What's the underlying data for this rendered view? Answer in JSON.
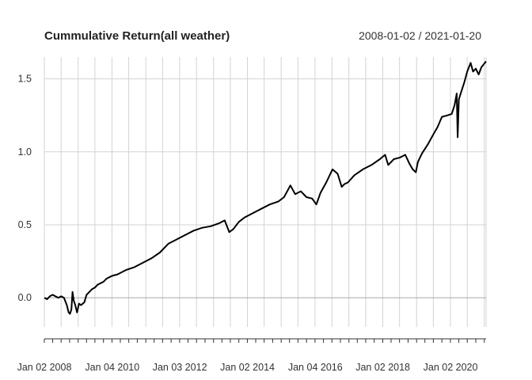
{
  "chart_data": {
    "type": "line",
    "title": "Cummulative Return(all weather)",
    "date_range": "2008-01-02 / 2021-01-20",
    "xlabel": "",
    "ylabel": "",
    "x_range": [
      "2008-01-02",
      "2021-01-20"
    ],
    "ylim": [
      -0.2,
      1.65
    ],
    "y_ticks": [
      0.0,
      0.5,
      1.0,
      1.5
    ],
    "y_tick_labels": [
      "0.0",
      "0.5",
      "1.0",
      "1.5"
    ],
    "x_tick_labels": [
      {
        "date": "2008-01-02",
        "label": "Jan 02 2008"
      },
      {
        "date": "2010-01-04",
        "label": "Jan 04 2010"
      },
      {
        "date": "2012-01-03",
        "label": "Jan 03 2012"
      },
      {
        "date": "2014-01-02",
        "label": "Jan 02 2014"
      },
      {
        "date": "2016-01-04",
        "label": "Jan 04 2016"
      },
      {
        "date": "2018-01-02",
        "label": "Jan 02 2018"
      },
      {
        "date": "2020-01-02",
        "label": "Jan 02 2020"
      }
    ],
    "grid": true,
    "line_color": "#000000",
    "grid_color": "#d3d3d3",
    "series": [
      {
        "x": [
          "2008-01-02",
          "2008-02-01",
          "2008-03-01",
          "2008-04-01",
          "2008-05-01",
          "2008-06-01",
          "2008-07-01",
          "2008-08-01",
          "2008-09-01",
          "2008-09-20",
          "2008-10-05",
          "2008-10-20",
          "2008-11-01",
          "2008-11-15",
          "2008-12-01",
          "2008-12-20",
          "2009-01-10",
          "2009-02-01",
          "2009-02-20",
          "2009-03-09",
          "2009-04-01",
          "2009-05-01",
          "2009-06-01",
          "2009-07-01",
          "2009-08-01",
          "2009-09-01",
          "2009-10-01",
          "2009-11-01",
          "2009-12-01",
          "2010-01-01",
          "2010-03-01",
          "2010-06-01",
          "2010-09-01",
          "2010-12-01",
          "2011-03-01",
          "2011-06-01",
          "2011-09-01",
          "2011-12-01",
          "2012-03-01",
          "2012-06-01",
          "2012-09-01",
          "2012-12-01",
          "2013-03-01",
          "2013-05-01",
          "2013-06-20",
          "2013-08-01",
          "2013-10-01",
          "2013-12-01",
          "2014-03-01",
          "2014-06-01",
          "2014-09-01",
          "2014-12-01",
          "2015-02-01",
          "2015-04-10",
          "2015-06-01",
          "2015-08-01",
          "2015-10-01",
          "2015-12-01",
          "2016-01-15",
          "2016-03-01",
          "2016-05-01",
          "2016-07-08",
          "2016-09-01",
          "2016-10-15",
          "2016-11-15",
          "2016-12-20",
          "2017-03-01",
          "2017-06-01",
          "2017-09-01",
          "2017-12-01",
          "2018-01-26",
          "2018-03-01",
          "2018-05-01",
          "2018-07-01",
          "2018-09-01",
          "2018-10-15",
          "2018-11-20",
          "2018-12-24",
          "2019-01-15",
          "2019-03-01",
          "2019-05-01",
          "2019-07-01",
          "2019-08-15",
          "2019-10-01",
          "2019-12-01",
          "2020-01-15",
          "2020-02-15",
          "2020-03-09",
          "2020-03-19",
          "2020-04-01",
          "2020-05-01",
          "2020-06-01",
          "2020-07-01",
          "2020-08-06",
          "2020-09-01",
          "2020-10-01",
          "2020-11-01",
          "2020-12-01",
          "2021-01-20"
        ],
        "y": [
          0.0,
          -0.01,
          0.01,
          0.02,
          0.01,
          0.0,
          0.01,
          0.0,
          -0.05,
          -0.1,
          -0.11,
          -0.08,
          0.04,
          -0.02,
          -0.05,
          -0.1,
          -0.04,
          -0.05,
          -0.04,
          -0.03,
          0.02,
          0.04,
          0.06,
          0.07,
          0.09,
          0.1,
          0.11,
          0.13,
          0.14,
          0.15,
          0.16,
          0.19,
          0.21,
          0.24,
          0.27,
          0.31,
          0.37,
          0.4,
          0.43,
          0.46,
          0.48,
          0.49,
          0.51,
          0.53,
          0.45,
          0.47,
          0.52,
          0.55,
          0.58,
          0.61,
          0.64,
          0.66,
          0.69,
          0.77,
          0.71,
          0.73,
          0.69,
          0.68,
          0.64,
          0.72,
          0.79,
          0.88,
          0.85,
          0.76,
          0.78,
          0.79,
          0.84,
          0.88,
          0.91,
          0.95,
          0.98,
          0.91,
          0.95,
          0.96,
          0.98,
          0.92,
          0.88,
          0.86,
          0.93,
          0.99,
          1.05,
          1.12,
          1.17,
          1.24,
          1.25,
          1.26,
          1.32,
          1.4,
          1.1,
          1.36,
          1.42,
          1.48,
          1.55,
          1.61,
          1.55,
          1.57,
          1.53,
          1.58,
          1.62
        ]
      }
    ]
  }
}
